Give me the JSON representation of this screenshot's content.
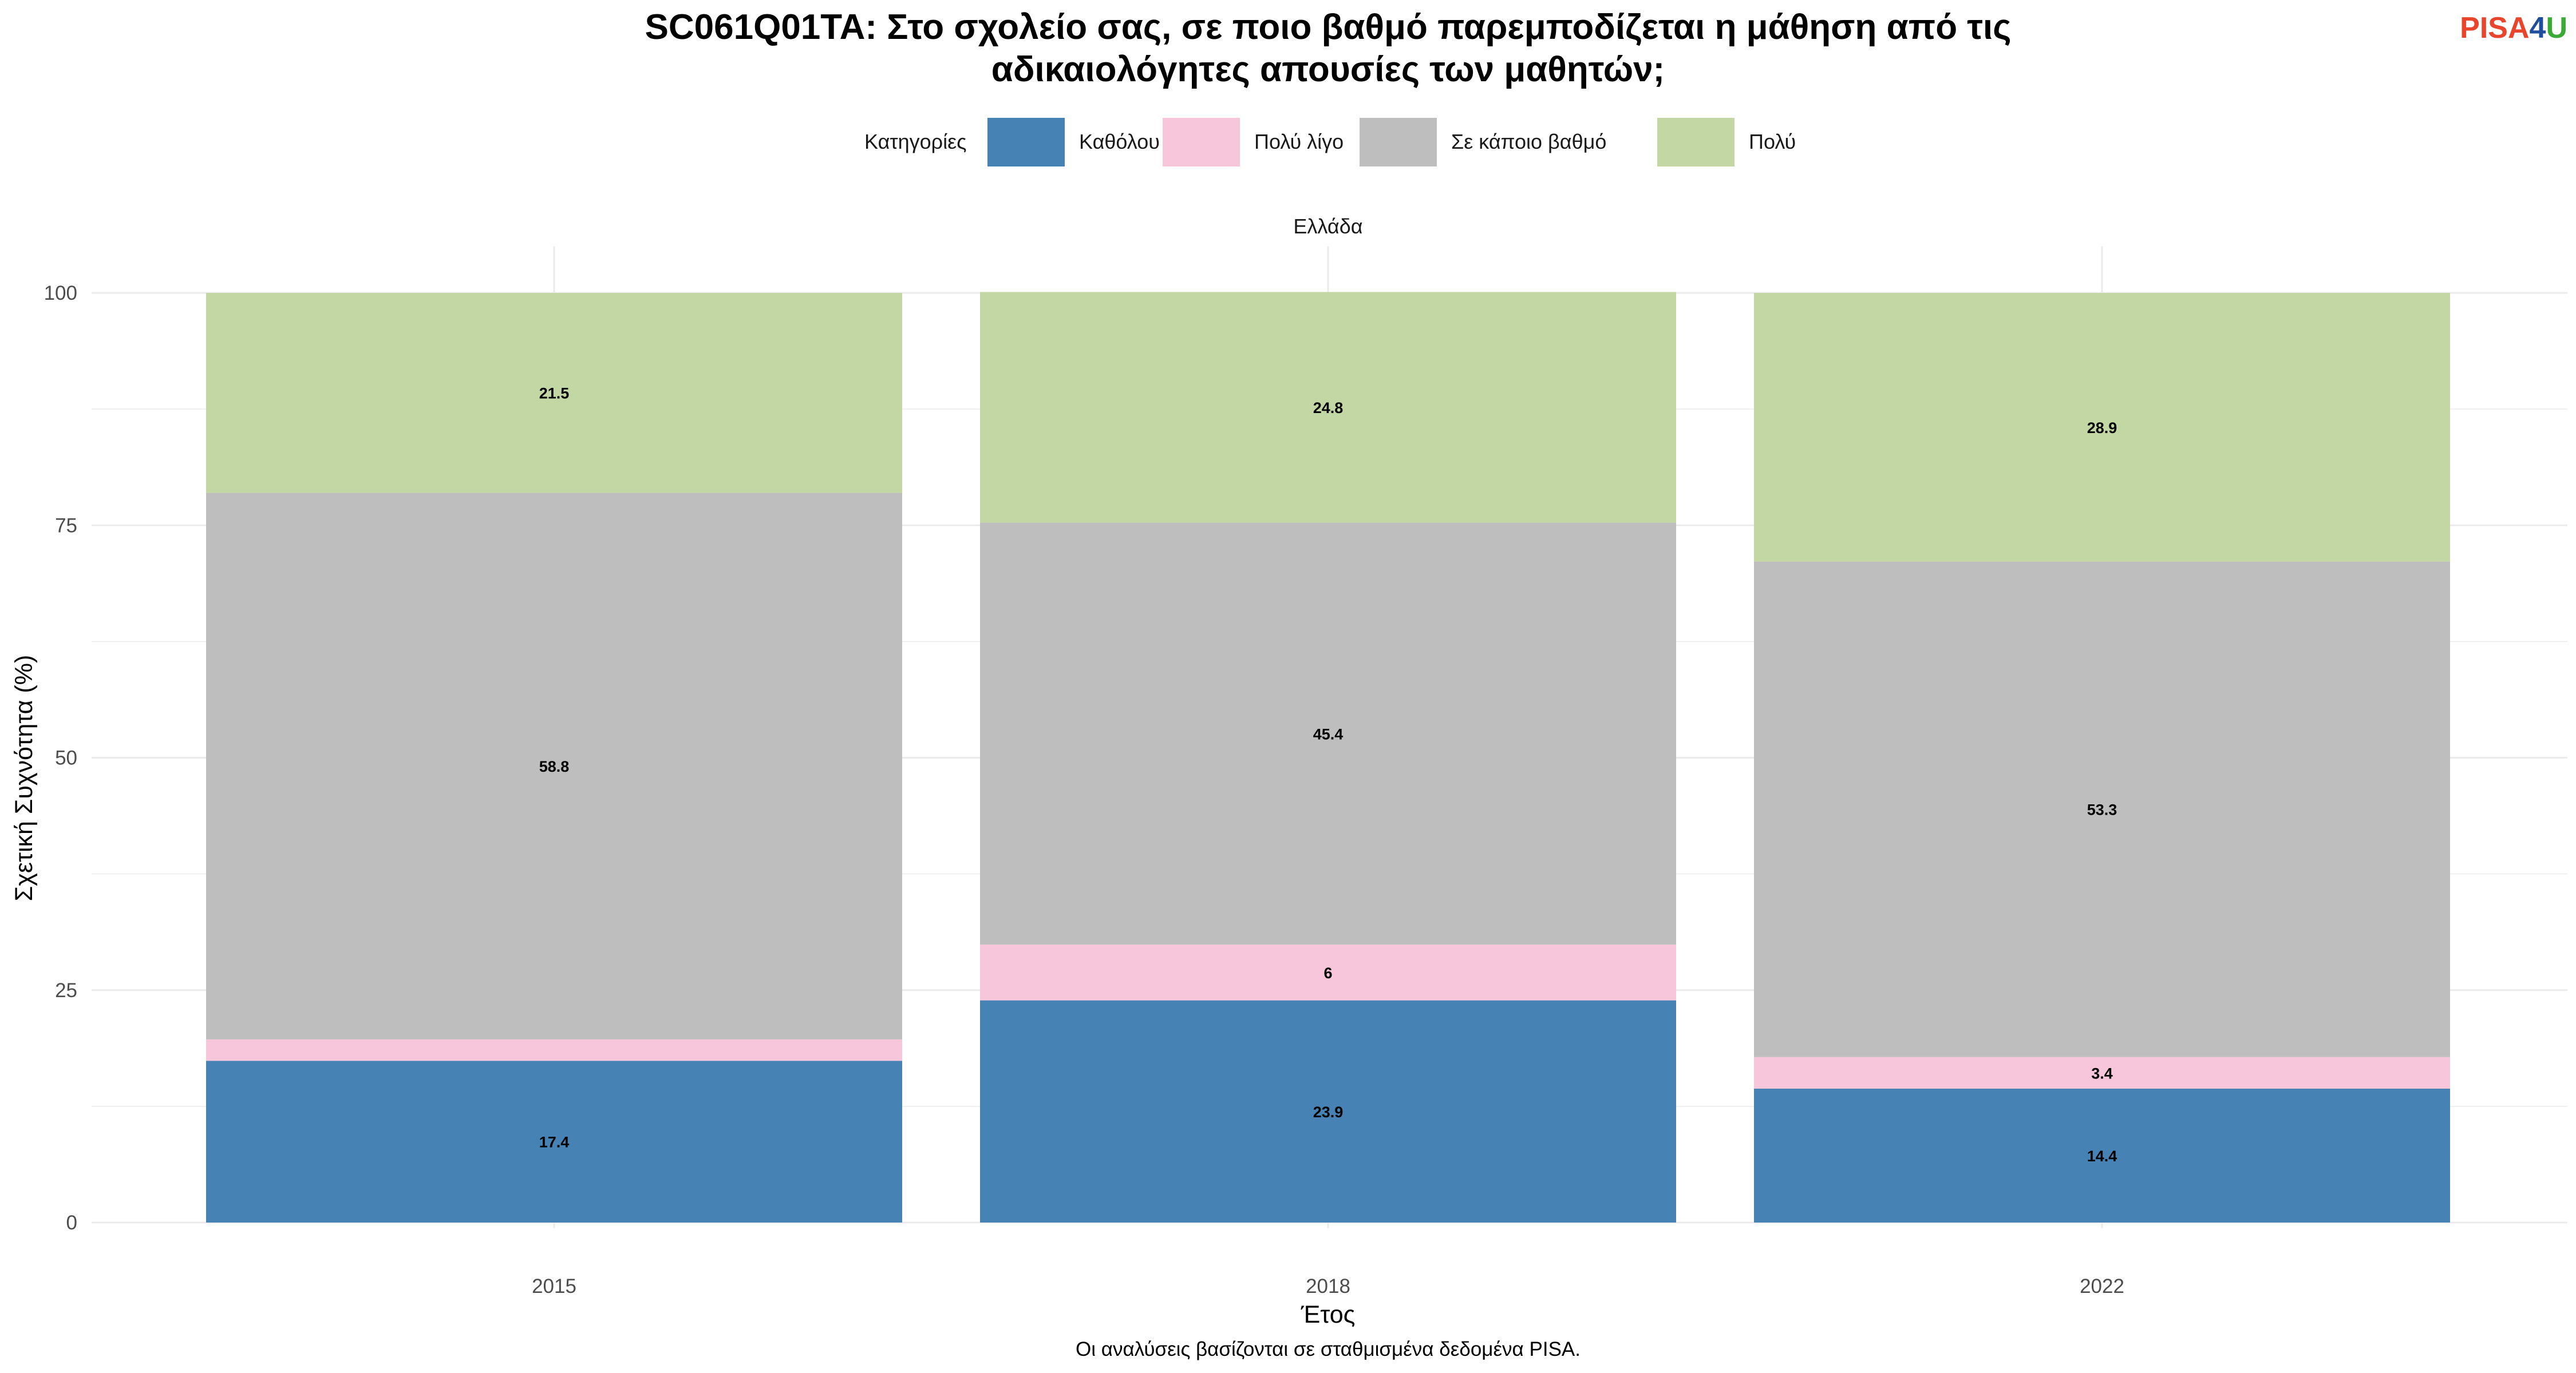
{
  "title_line1": "SC061Q01TA: Στο σχολείο σας, σε ποιο βαθμό παρεμποδίζεται η μάθηση από τις",
  "title_line2": "αδικαιολόγητες απουσίες των μαθητών;",
  "logo": {
    "part1": "PISA",
    "part2": "4",
    "part3": "U",
    "color1": "#E8452C",
    "color2": "#1F4E9C",
    "color3": "#3AA935"
  },
  "legend_title": "Κατηγορίες",
  "caption": "Οι αναλύσεις βασίζονται σε σταθμισμένα δεδομένα PISA.",
  "chart_data": {
    "type": "bar",
    "stacked": true,
    "facet_label": "Ελλάδα",
    "categories": [
      "2015",
      "2018",
      "2022"
    ],
    "xlabel": "Έτος",
    "ylabel": "Σχετική Συχνότητα (%)",
    "ylim": [
      0,
      100
    ],
    "yticks": [
      0,
      25,
      50,
      75,
      100
    ],
    "grid": true,
    "legend_position": "top",
    "series": [
      {
        "name": "Καθόλου",
        "color": "#4682B4",
        "values": [
          17.4,
          23.9,
          14.4
        ],
        "labels": [
          "17.4",
          "23.9",
          "14.4"
        ]
      },
      {
        "name": "Πολύ λίγο",
        "color": "#F8C6DA",
        "values": [
          2.3,
          6,
          3.4
        ],
        "labels": [
          "",
          "6",
          "3.4"
        ]
      },
      {
        "name": "Σε κάποιο βαθμό",
        "color": "#BEBEBE",
        "values": [
          58.8,
          45.4,
          53.3
        ],
        "labels": [
          "58.8",
          "45.4",
          "53.3"
        ]
      },
      {
        "name": "Πολύ",
        "color": "#C3D7A4",
        "values": [
          21.5,
          24.8,
          28.9
        ],
        "labels": [
          "21.5",
          "24.8",
          "28.9"
        ]
      }
    ]
  }
}
